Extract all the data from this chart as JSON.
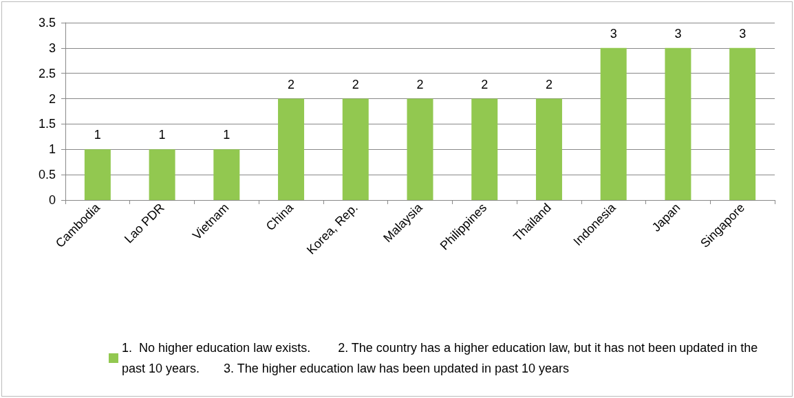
{
  "chart_data": {
    "type": "bar",
    "categories": [
      "Cambodia",
      "Lao PDR",
      "Vietnam",
      "China",
      "Korea, Rep.",
      "Malaysia",
      "Philippines",
      "Thailand",
      "Indonesia",
      "Japan",
      "Singapore"
    ],
    "series": [
      {
        "name": "1.  No higher education law exists.        2. The country has a higher education law, but it has not been updated in the past 10 years.       3. The higher education law has been updated in past 10 years",
        "color": "#92c850",
        "values": [
          1,
          1,
          1,
          2,
          2,
          2,
          2,
          2,
          3,
          3,
          3
        ]
      }
    ],
    "ylim": [
      0,
      3.5
    ],
    "yticks": [
      0,
      0.5,
      1,
      1.5,
      2,
      2.5,
      3,
      3.5
    ],
    "grid": "y",
    "legend": "bottom",
    "data_labels": true
  }
}
